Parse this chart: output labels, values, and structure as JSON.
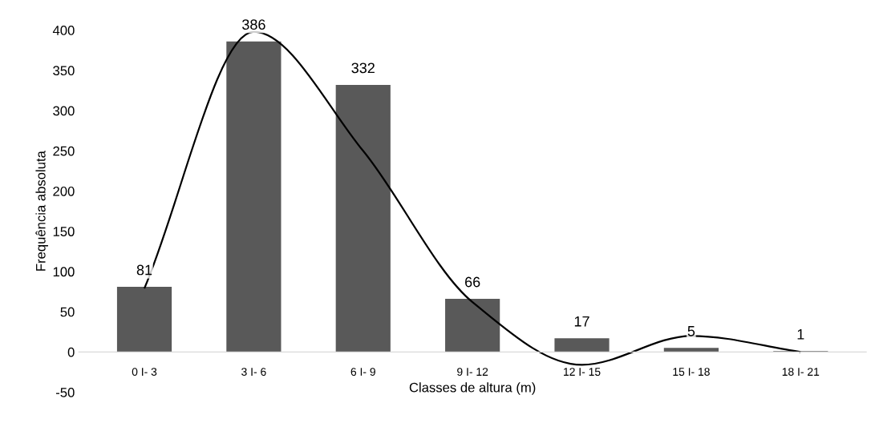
{
  "chart_data": {
    "type": "bar",
    "xlabel": "Classes de altura (m)",
    "ylabel": "Frequência absoluta",
    "categories": [
      "0 I- 3",
      "3 I- 6",
      "6 I- 9",
      "9 I- 12",
      "12 I- 15",
      "15 I- 18",
      "18 I- 21"
    ],
    "series": [
      {
        "type": "bar",
        "color": "#595959",
        "values": [
          81,
          386,
          332,
          66,
          17,
          5,
          1
        ],
        "value_labels": [
          "81",
          "386",
          "332",
          "66",
          "17",
          "5",
          "1"
        ]
      },
      {
        "type": "line",
        "color": "#000000",
        "values": [
          79,
          398,
          250,
          62,
          -16,
          20,
          0
        ]
      }
    ],
    "ylim": [
      -50,
      400
    ],
    "yticks": [
      -50,
      0,
      50,
      100,
      150,
      200,
      250,
      300,
      350,
      400
    ],
    "grid": false,
    "legend": false,
    "marker": "none",
    "line_style": "solid"
  }
}
